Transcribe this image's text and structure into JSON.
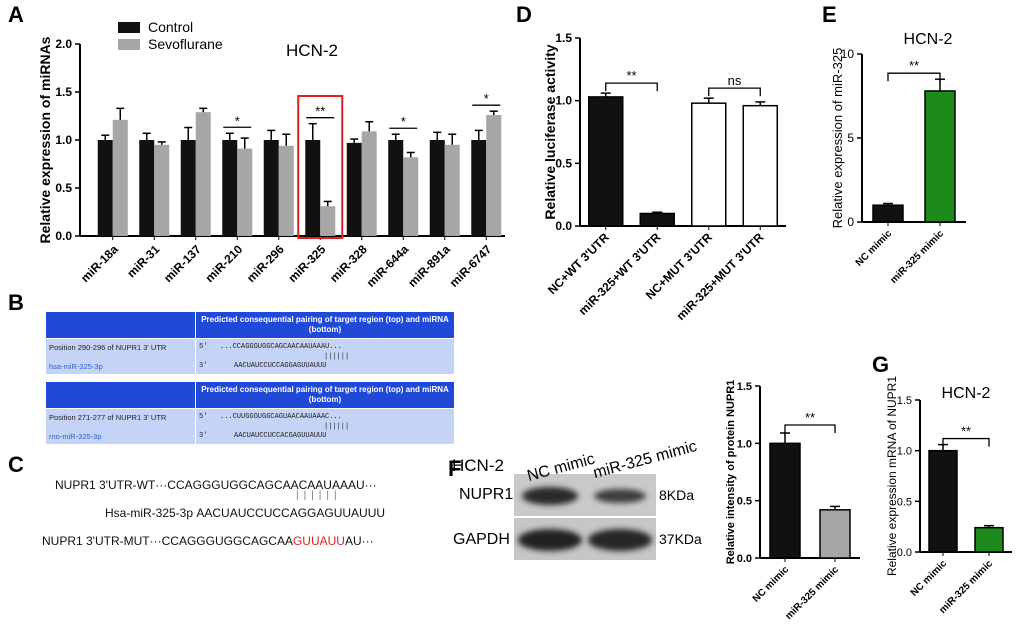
{
  "panels": {
    "A": "A",
    "B": "B",
    "C": "C",
    "D": "D",
    "E": "E",
    "F": "F",
    "G": "G"
  },
  "colors": {
    "black": "#111111",
    "gray": "#a6a6a6",
    "green": "#1b8a1b",
    "highlight_box": "#e02020",
    "table_header": "#1f49d6",
    "table_row": "#c5d3f6"
  },
  "chart_data": [
    {
      "id": "A",
      "type": "bar",
      "title": "HCN-2",
      "ylabel": "Relative expression of miRNAs",
      "ylim": [
        0,
        2.0
      ],
      "yticks": [
        "0.0",
        "0.5",
        "1.0",
        "1.5",
        "2.0"
      ],
      "legend_position": "top-left",
      "categories": [
        "miR-18a",
        "miR-31",
        "miR-137",
        "miR-210",
        "miR-296",
        "miR-325",
        "miR-328",
        "miR-644a",
        "miR-891a",
        "miR-6747"
      ],
      "series": [
        {
          "name": "Control",
          "color": "#111111",
          "values": [
            1.0,
            1.0,
            1.0,
            1.0,
            1.0,
            1.0,
            0.97,
            1.0,
            1.0,
            1.0
          ],
          "errors": [
            0.05,
            0.07,
            0.13,
            0.07,
            0.1,
            0.17,
            0.04,
            0.06,
            0.08,
            0.1
          ]
        },
        {
          "name": "Sevoflurane",
          "color": "#a6a6a6",
          "values": [
            1.21,
            0.95,
            1.29,
            0.91,
            0.94,
            0.31,
            1.09,
            0.82,
            0.95,
            1.26
          ],
          "errors": [
            0.12,
            0.03,
            0.04,
            0.11,
            0.12,
            0.05,
            0.1,
            0.05,
            0.11,
            0.04
          ]
        }
      ],
      "significance": [
        {
          "category": "miR-210",
          "label": "*"
        },
        {
          "category": "miR-325",
          "label": "**"
        },
        {
          "category": "miR-644a",
          "label": "*"
        },
        {
          "category": "miR-6747",
          "label": "*"
        }
      ],
      "highlight": "miR-325"
    },
    {
      "id": "D",
      "type": "bar",
      "ylabel": "Relative luciferase activity",
      "ylim": [
        0,
        1.5
      ],
      "yticks": [
        "0.0",
        "0.5",
        "1.0",
        "1.5"
      ],
      "categories": [
        "NC+WT 3'UTR",
        "miR-325+WT 3'UTR",
        "NC+MUT 3'UTR",
        "miR-325+MUT 3'UTR"
      ],
      "values": [
        1.03,
        0.1,
        0.98,
        0.96
      ],
      "errors": [
        0.03,
        0.01,
        0.04,
        0.03
      ],
      "fills": [
        "#111111",
        "#111111",
        "#ffffff",
        "#ffffff"
      ],
      "significance": [
        {
          "pair": [
            0,
            1
          ],
          "label": "**"
        },
        {
          "pair": [
            2,
            3
          ],
          "label": "ns"
        }
      ]
    },
    {
      "id": "E",
      "type": "bar",
      "title": "HCN-2",
      "ylabel": "Relative expression of miR-325",
      "ylim": [
        0,
        10
      ],
      "yticks": [
        "0",
        "5",
        "10"
      ],
      "categories": [
        "NC mimic",
        "miR-325 mimic"
      ],
      "values": [
        1.0,
        7.8
      ],
      "errors": [
        0.1,
        0.7
      ],
      "fills": [
        "#111111",
        "#1b8a1b"
      ],
      "significance": [
        {
          "pair": [
            0,
            1
          ],
          "label": "**"
        }
      ]
    },
    {
      "id": "F",
      "type": "bar",
      "ylabel": "Relative intensity of protein NUPR1",
      "ylim": [
        0,
        1.5
      ],
      "yticks": [
        "0.0",
        "0.5",
        "1.0",
        "1.5"
      ],
      "categories": [
        "NC mimic",
        "miR-325 mimic"
      ],
      "values": [
        1.0,
        0.42
      ],
      "errors": [
        0.09,
        0.03
      ],
      "fills": [
        "#111111",
        "#a6a6a6"
      ],
      "significance": [
        {
          "pair": [
            0,
            1
          ],
          "label": "**"
        }
      ]
    },
    {
      "id": "G",
      "type": "bar",
      "title": "HCN-2",
      "ylabel": "Relative expression mRNA of NUPR1",
      "ylim": [
        0,
        1.5
      ],
      "yticks": [
        "0.0",
        "0.5",
        "1.0",
        "1.5"
      ],
      "categories": [
        "NC mimic",
        "miR-325 mimic"
      ],
      "values": [
        1.0,
        0.24
      ],
      "errors": [
        0.06,
        0.02
      ],
      "fills": [
        "#111111",
        "#1b8a1b"
      ],
      "significance": [
        {
          "pair": [
            0,
            1
          ],
          "label": "**"
        }
      ]
    }
  ],
  "table_b": {
    "header": "Predicted consequential pairing of target region (top) and miRNA (bottom)",
    "blocks": [
      {
        "target_label": "Position 290-296 of NUPR1 3' UTR",
        "target_prime": "5'",
        "target_seq": "...CCAGGGUGGCAGCAACAAUAAAU...",
        "pairing": "||||||",
        "mirna_label": "hsa-miR-325-3p",
        "mirna_prime": "3'",
        "mirna_seq": "AACUAUCCUCCAGGAGUUAUUU"
      },
      {
        "target_label": "Position 271-277 of NUPR1 3' UTR",
        "target_prime": "5'",
        "target_seq": "...CUUGGGUGGCAGUAACAAUAAAC...",
        "pairing": "||||||",
        "mirna_label": "rno-miR-325-3p",
        "mirna_prime": "3'",
        "mirna_seq": "AACUAUCCUCCACGAGUUAUUU"
      }
    ]
  },
  "seq_c": {
    "wt_label": "NUPR1 3'UTR-WT",
    "wt_seq": "···CCAGGGUGGCAGCAACAAUAAAU···",
    "pairing": "||||||",
    "mir_label": "Hsa-miR-325-3p",
    "mir_seq": "AACUAUCCUCCAGGAGUUAUUU",
    "mut_label": "NUPR1 3'UTR-MUT",
    "mut_seq_prefix": "···CCAGGGUGGCAGCAA",
    "mut_seq_mutated": "GUUAUU",
    "mut_seq_suffix": "AU···"
  },
  "blot_f": {
    "cell_line": "HCN-2",
    "lanes": [
      "NC mimic",
      "miR-325 mimic"
    ],
    "rows": [
      {
        "protein": "NUPR1",
        "size": "8KDa"
      },
      {
        "protein": "GAPDH",
        "size": "37KDa"
      }
    ]
  }
}
